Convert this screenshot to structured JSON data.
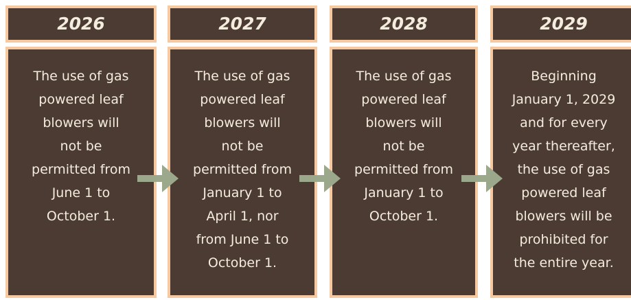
{
  "columns": [
    {
      "year": "2026",
      "lines": [
        "The use of gas",
        "powered leaf",
        "blowers will",
        "not be",
        "permitted from",
        "June 1 to",
        "October 1."
      ]
    },
    {
      "year": "2027",
      "lines": [
        "The use of gas",
        "powered leaf",
        "blowers will",
        "not be",
        "permitted from",
        "January 1 to",
        "April 1, nor",
        "from June 1 to",
        "October 1."
      ]
    },
    {
      "year": "2028",
      "lines": [
        "The use of gas",
        "powered leaf",
        "blowers will",
        "not be",
        "permitted from",
        "January 1 to",
        "October 1."
      ]
    },
    {
      "year": "2029",
      "lines": [
        "Beginning",
        "January 1, 2029",
        "and for every",
        "year thereafter,",
        "the use of gas",
        "powered leaf",
        "blowers will be",
        "prohibited for",
        "the entire year."
      ]
    }
  ]
}
